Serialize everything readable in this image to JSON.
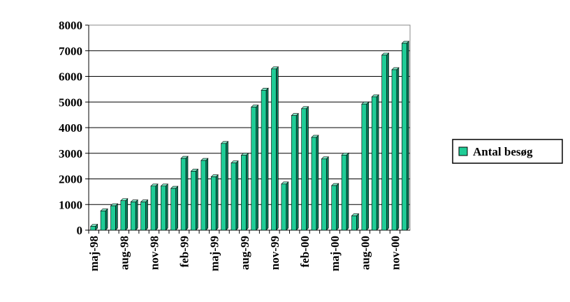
{
  "chart_data": {
    "type": "bar",
    "categories": [
      "maj-98",
      null,
      null,
      "aug-98",
      null,
      null,
      "nov-98",
      null,
      null,
      "feb-99",
      null,
      null,
      "maj-99",
      null,
      null,
      "aug-99",
      null,
      null,
      "nov-99",
      null,
      null,
      "feb-00",
      null,
      null,
      "maj-00",
      null,
      null,
      "aug-00",
      null,
      null,
      "nov-00",
      null
    ],
    "series": [
      {
        "name": "Antal besøg",
        "color": "#1fcc96",
        "values": [
          150,
          750,
          950,
          1150,
          1100,
          1100,
          1720,
          1720,
          1630,
          2800,
          2300,
          2720,
          2080,
          3380,
          2620,
          2920,
          4800,
          5460,
          6290,
          1800,
          4470,
          4740,
          3620,
          2780,
          1740,
          2930,
          560,
          4920,
          5200,
          6830,
          6260,
          7290
        ]
      }
    ],
    "ylim": [
      0,
      8000
    ],
    "yticks": [
      0,
      1000,
      2000,
      3000,
      4000,
      5000,
      6000,
      7000,
      8000
    ],
    "grid": true,
    "legend": "right"
  }
}
